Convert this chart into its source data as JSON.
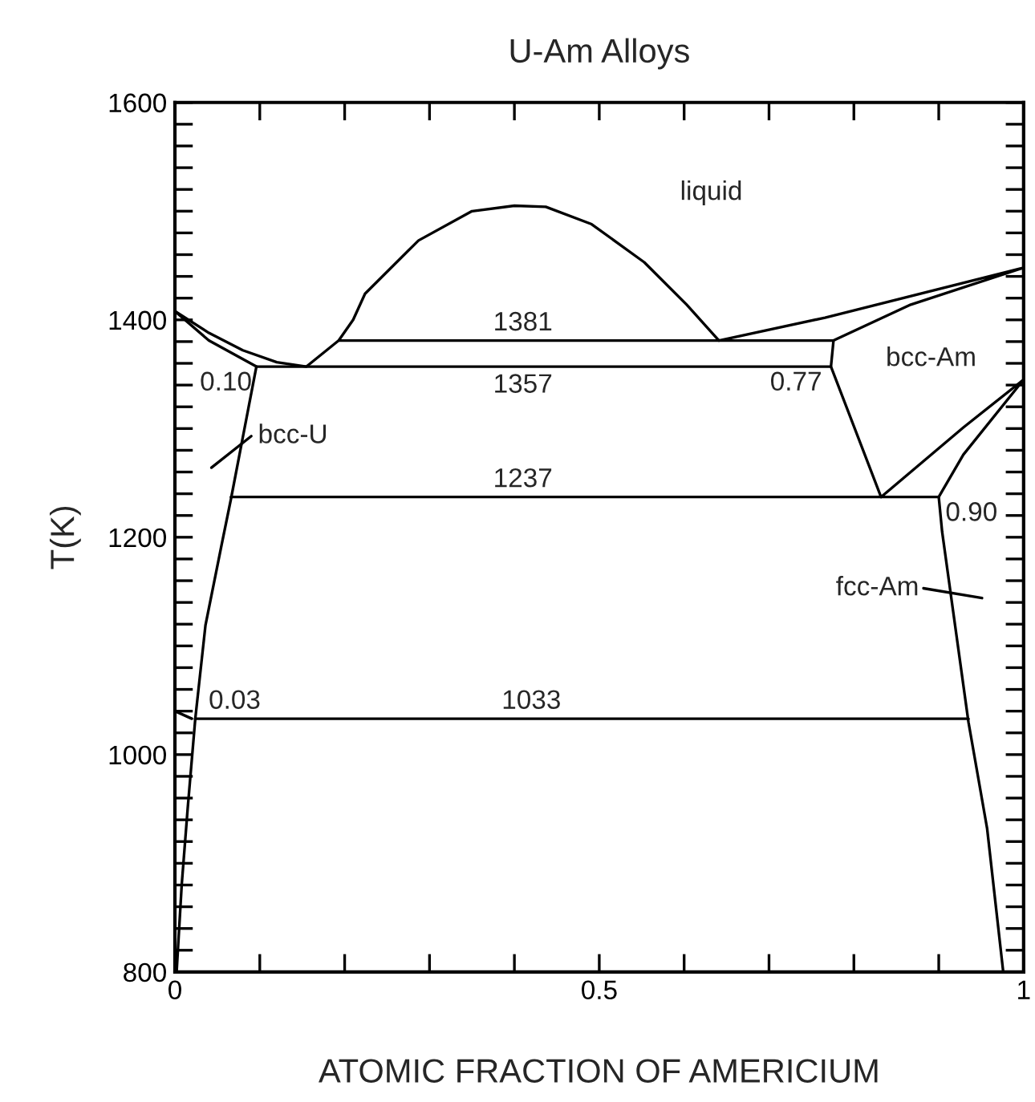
{
  "chart_data": {
    "type": "line",
    "title": "U-Am Alloys",
    "xlabel": "ATOMIC FRACTION OF AMERICIUM",
    "ylabel": "T(K)",
    "xlim": [
      0,
      1
    ],
    "ylim": [
      800,
      1600
    ],
    "xticks": [
      0,
      {
        "value": 0.1,
        "label": null
      },
      {
        "value": 0.2,
        "label": null
      },
      {
        "value": 0.3,
        "label": null
      },
      {
        "value": 0.4,
        "label": null
      },
      0.5,
      {
        "value": 0.6,
        "label": null
      },
      {
        "value": 0.7,
        "label": null
      },
      {
        "value": 0.8,
        "label": null
      },
      {
        "value": 0.9,
        "label": null
      },
      1
    ],
    "yticks": [
      800,
      {
        "value": 820,
        "label": null
      },
      {
        "value": 840,
        "label": null
      },
      {
        "value": 860,
        "label": null
      },
      {
        "value": 880,
        "label": null
      },
      {
        "value": 900,
        "label": null
      },
      {
        "value": 920,
        "label": null
      },
      {
        "value": 940,
        "label": null
      },
      {
        "value": 960,
        "label": null
      },
      {
        "value": 980,
        "label": null
      },
      1000,
      {
        "value": 1020,
        "label": null
      },
      {
        "value": 1040,
        "label": null
      },
      {
        "value": 1060,
        "label": null
      },
      {
        "value": 1080,
        "label": null
      },
      {
        "value": 1100,
        "label": null
      },
      {
        "value": 1120,
        "label": null
      },
      {
        "value": 1140,
        "label": null
      },
      {
        "value": 1160,
        "label": null
      },
      {
        "value": 1180,
        "label": null
      },
      1200,
      {
        "value": 1220,
        "label": null
      },
      {
        "value": 1240,
        "label": null
      },
      {
        "value": 1260,
        "label": null
      },
      {
        "value": 1280,
        "label": null
      },
      {
        "value": 1300,
        "label": null
      },
      {
        "value": 1320,
        "label": null
      },
      {
        "value": 1340,
        "label": null
      },
      {
        "value": 1360,
        "label": null
      },
      {
        "value": 1380,
        "label": null
      },
      1400,
      {
        "value": 1420,
        "label": null
      },
      {
        "value": 1440,
        "label": null
      },
      {
        "value": 1460,
        "label": null
      },
      {
        "value": 1480,
        "label": null
      },
      {
        "value": 1500,
        "label": null
      },
      {
        "value": 1520,
        "label": null
      },
      {
        "value": 1540,
        "label": null
      },
      {
        "value": 1560,
        "label": null
      },
      {
        "value": 1580,
        "label": null
      },
      1600
    ],
    "grid": false,
    "series": [
      {
        "color": "#000000",
        "x": [
          0,
          0.04,
          0.08,
          0.12,
          0.155,
          0.193,
          0.21,
          0.224,
          0.287,
          0.35,
          0.4,
          0.437,
          0.491,
          0.553,
          0.603,
          0.641,
          0.766,
          1.0,
          0.867,
          0.776,
          0.773,
          0.832,
          0.929,
          1.0,
          0.929,
          0.9,
          0.904,
          0.935,
          0.957,
          0.976
        ],
        "values": [
          1408,
          1388,
          1372,
          1361,
          1357,
          1381,
          1400,
          1424,
          1473,
          1500,
          1505,
          1504,
          1488,
          1453,
          1414,
          1381,
          1402,
          1448,
          1414,
          1381,
          1357,
          1237,
          1301,
          1345,
          1276,
          1237,
          1205,
          1030,
          932,
          800
        ]
      },
      {
        "color": "#000000",
        "x": [
          0,
          0.04,
          0.096,
          0.066,
          0.055,
          0.036,
          0.024,
          0.015,
          0.008,
          0.002
        ],
        "values": [
          1408,
          1381,
          1357,
          1235,
          1193,
          1119,
          1033,
          950,
          880,
          800
        ]
      },
      {
        "color": "#000000",
        "x": [
          0,
          0.02
        ],
        "values": [
          1040,
          1033
        ]
      },
      {
        "color": "#000000",
        "x": [
          0.193,
          0.776
        ],
        "values": [
          1381,
          1381
        ]
      },
      {
        "color": "#000000",
        "x": [
          0.096,
          0.773
        ],
        "values": [
          1357,
          1357
        ]
      },
      {
        "color": "#000000",
        "x": [
          0.066,
          0.9
        ],
        "values": [
          1237,
          1237
        ]
      },
      {
        "color": "#000000",
        "x": [
          0.024,
          0.935
        ],
        "values": [
          1033,
          1033
        ]
      },
      {
        "color": "#000000",
        "x": [
          0.043,
          0.09
        ],
        "values": [
          1264,
          1293
        ]
      },
      {
        "color": "#000000",
        "x": [
          0.882,
          0.951
        ],
        "values": [
          1153,
          1144
        ]
      }
    ],
    "annotations": [
      "liquid",
      {
        "text": "1381",
        "x": 0.41,
        "y": 1381
      },
      {
        "text": "1357",
        "x": 0.41,
        "y": 1357
      },
      {
        "text": "1237",
        "x": 0.41,
        "y": 1237
      },
      {
        "text": "1033",
        "x": 0.42,
        "y": 1033
      },
      {
        "text": "0.10",
        "x": 0.096,
        "y": 1357
      },
      {
        "text": "0.77",
        "x": 0.773,
        "y": 1357
      },
      {
        "text": "0.90",
        "x": 0.9,
        "y": 1237
      },
      {
        "text": "0.03",
        "x": 0.024,
        "y": 1033
      },
      {
        "text": "bcc-U",
        "x": 0.09,
        "y": 1293
      },
      "bcc-Am",
      {
        "text": "fcc-Am",
        "x": 0.882,
        "y": 1153
      }
    ]
  }
}
